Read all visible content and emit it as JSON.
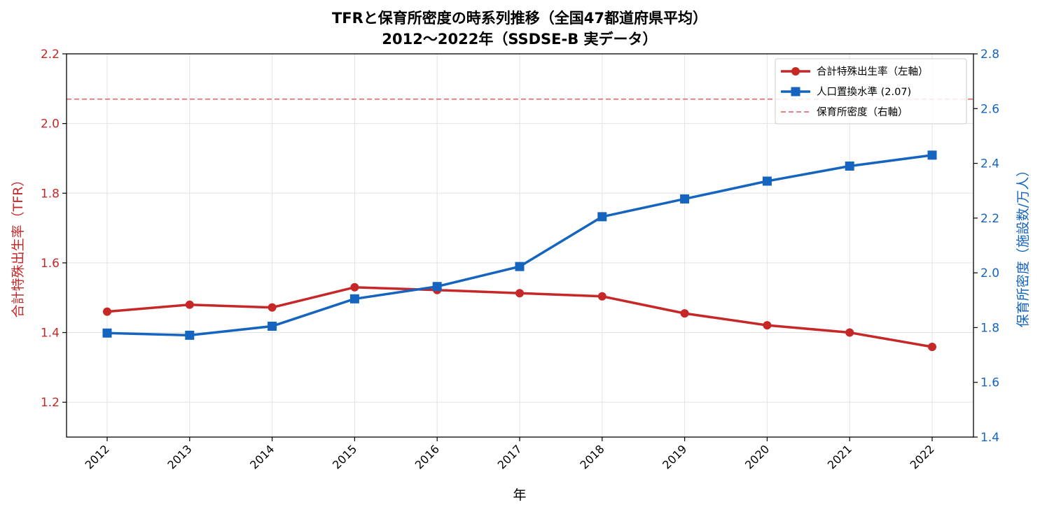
{
  "chart_data": {
    "type": "line",
    "title_line1": "TFRと保育所密度の時系列推移（全国47都道府県平均）",
    "title_line2": "2012〜2022年（SSDSE-B 実データ）",
    "xlabel": "年",
    "ylabel_left": "合計特殊出生率（TFR）",
    "ylabel_right": "保育所密度（施設数/万人）",
    "categories": [
      "2012",
      "2013",
      "2014",
      "2015",
      "2016",
      "2017",
      "2018",
      "2019",
      "2020",
      "2021",
      "2022"
    ],
    "left_axis": {
      "ylim": [
        1.1,
        2.2
      ],
      "ticks": [
        "1.2",
        "1.4",
        "1.6",
        "1.8",
        "2.0",
        "2.2"
      ],
      "color": "#c62828"
    },
    "right_axis": {
      "ylim": [
        1.4,
        2.8
      ],
      "ticks": [
        "1.4",
        "1.6",
        "1.8",
        "2.0",
        "2.2",
        "2.4",
        "2.6",
        "2.8"
      ],
      "color": "#1565c0"
    },
    "series": [
      {
        "name": "合計特殊出生率（左軸）",
        "axis": "left",
        "color": "#c62828",
        "marker": "circle",
        "values": [
          1.46,
          1.48,
          1.472,
          1.53,
          1.522,
          1.513,
          1.504,
          1.455,
          1.421,
          1.4,
          1.359
        ]
      },
      {
        "name": "保育所密度（右軸）",
        "axis": "right",
        "color": "#1565c0",
        "marker": "square",
        "values": [
          1.78,
          1.772,
          1.805,
          1.905,
          1.95,
          2.023,
          2.205,
          2.27,
          2.335,
          2.39,
          2.43
        ]
      }
    ],
    "reference_line": {
      "label": "人口置換水準 (2.07)",
      "axis": "left",
      "value": 2.07,
      "color": "#e57373",
      "style": "dashed"
    },
    "legend": {
      "placement": "top-right",
      "entries": [
        "合計特殊出生率（左軸）",
        "人口置換水準 (2.07)",
        "保育所密度（右軸）"
      ]
    },
    "grid": true
  }
}
